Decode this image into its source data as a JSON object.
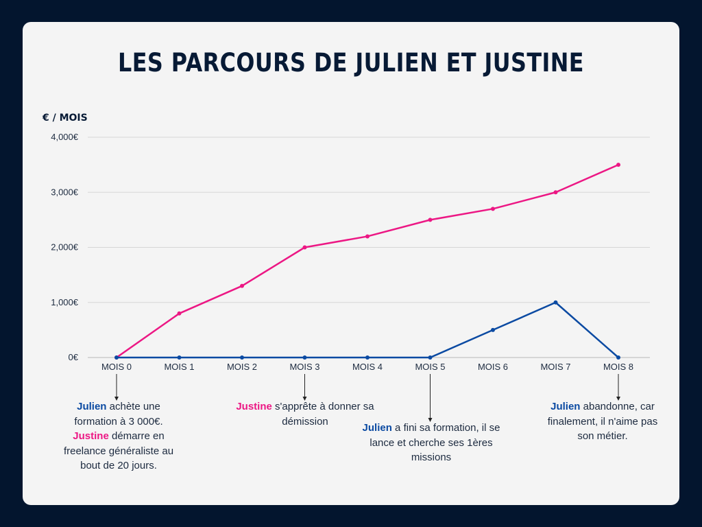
{
  "chart_data": {
    "type": "line",
    "title": "LES PARCOURS DE JULIEN ET JUSTINE",
    "ylabel": "€ / MOIS",
    "xlabel": "",
    "categories": [
      "MOIS 0",
      "MOIS 1",
      "MOIS 2",
      "MOIS 3",
      "MOIS 4",
      "MOIS 5",
      "MOIS 6",
      "MOIS 7",
      "MOIS 8"
    ],
    "ylim": [
      0,
      4000
    ],
    "yticks": [
      0,
      1000,
      2000,
      3000,
      4000
    ],
    "ytick_labels": [
      "0€",
      "1,000€",
      "2,000€",
      "3,000€",
      "4,000€"
    ],
    "grid": true,
    "legend": "none",
    "series": [
      {
        "values": [
          0,
          800,
          1300,
          2000,
          2200,
          2500,
          2700,
          3000,
          3500
        ],
        "color": "#ec1784"
      },
      {
        "values": [
          0,
          0,
          0,
          0,
          0,
          0,
          500,
          1000,
          0
        ],
        "color": "#0b4aa2"
      }
    ],
    "annotations": [
      {
        "category": "MOIS 0",
        "parts": [
          {
            "text": "Julien",
            "style": "julien"
          },
          {
            "text": " achète une formation à 3 000€. ",
            "style": "plain"
          },
          {
            "text": "Justine",
            "style": "justine"
          },
          {
            "text": " démarre en freelance généraliste au bout de 20 jours.",
            "style": "plain"
          }
        ]
      },
      {
        "category": "MOIS 3",
        "parts": [
          {
            "text": "Justine",
            "style": "justine"
          },
          {
            "text": " s'apprête à donner sa démission",
            "style": "plain"
          }
        ]
      },
      {
        "category": "MOIS 5",
        "parts": [
          {
            "text": "Julien",
            "style": "julien"
          },
          {
            "text": " a fini sa formation, il se lance et cherche ses 1ères missions",
            "style": "plain"
          }
        ]
      },
      {
        "category": "MOIS 8",
        "parts": [
          {
            "text": "Julien",
            "style": "julien"
          },
          {
            "text": " abandonne, car finalement, il n'aime pas son métier.",
            "style": "plain"
          }
        ]
      }
    ]
  }
}
